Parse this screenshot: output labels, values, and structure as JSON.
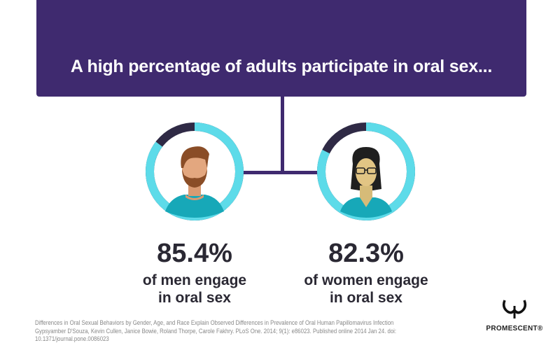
{
  "header": {
    "title": "A high percentage of adults participate in oral sex..."
  },
  "stats": [
    {
      "value": "85.4%",
      "percent": 85.4,
      "label_line1": "of men engage",
      "label_line2": "in oral sex",
      "icon": "man-avatar-icon"
    },
    {
      "value": "82.3%",
      "percent": 82.3,
      "label_line1": "of women engage",
      "label_line2": "in oral sex",
      "icon": "woman-avatar-icon"
    }
  ],
  "colors": {
    "banner": "#3f2a6f",
    "ring_fill": "#5ddbe9",
    "ring_remainder": "#2f2a45"
  },
  "citation": {
    "line1": "Differences in Oral Sexual Behaviors by Gender, Age, and Race Explain Observed Differences in Prevalence of Oral Human Papillomavirus Infection",
    "line2": "Gypsyamber D'Souza, Kevin Cullen, Janice Bowie, Roland Thorpe, Carole Fakhry. PLoS One. 2014; 9(1): e86023. Published online 2014 Jan 24. doi:",
    "line3": "10.1371/journal.pone.0086023"
  },
  "logo": {
    "text": "PROMESCENT®"
  }
}
